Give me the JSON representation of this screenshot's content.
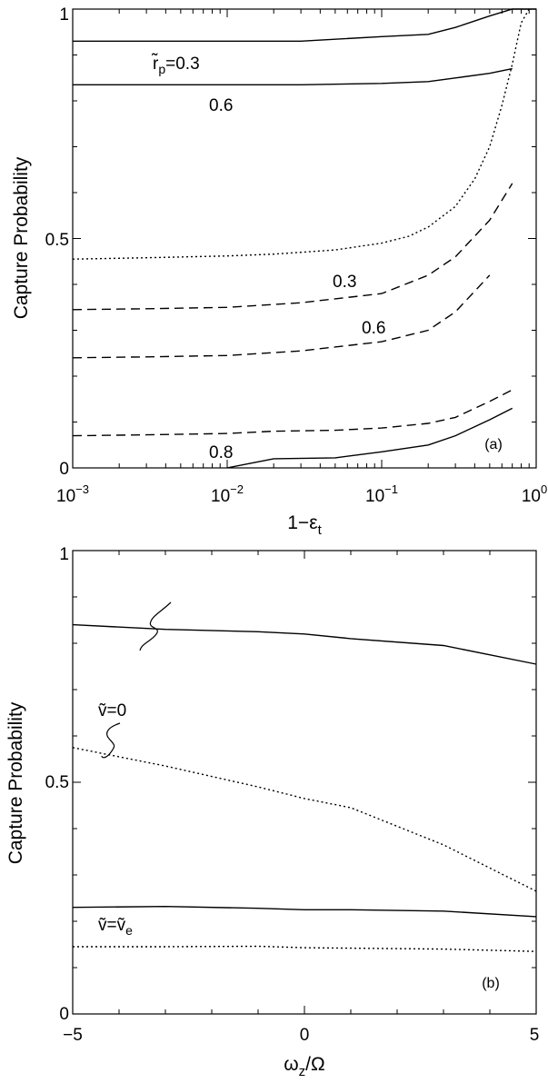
{
  "chart_data": [
    {
      "panel": "a",
      "type": "line",
      "panel_tag": "(a)",
      "xlabel": "1−ε",
      "xlabel_sub": "t",
      "ylabel": "Capture Probability",
      "xscale": "log",
      "xlim": [
        0.001,
        1
      ],
      "ylim": [
        0,
        1
      ],
      "x_tick_labels": [
        {
          "x": 0.001,
          "base": "10",
          "exp": "−3"
        },
        {
          "x": 0.01,
          "base": "10",
          "exp": "−2"
        },
        {
          "x": 0.1,
          "base": "10",
          "exp": "−1"
        },
        {
          "x": 1,
          "base": "10",
          "exp": "0"
        }
      ],
      "y_ticks": [
        0,
        0.5,
        1
      ],
      "y_tick_labels": [
        "0",
        "0.5",
        "1"
      ],
      "series": [
        {
          "name": "solid r=0.3",
          "style": "solid",
          "x": [
            0.001,
            0.003,
            0.01,
            0.03,
            0.1,
            0.2,
            0.3,
            0.5,
            0.7,
            0.9,
            1.0
          ],
          "y": [
            0.93,
            0.93,
            0.93,
            0.93,
            0.94,
            0.945,
            0.96,
            0.985,
            1.0,
            1.0,
            1.0
          ]
        },
        {
          "name": "solid r=0.6",
          "style": "solid",
          "x": [
            0.001,
            0.01,
            0.03,
            0.1,
            0.2,
            0.3,
            0.5,
            0.7
          ],
          "y": [
            0.835,
            0.835,
            0.835,
            0.838,
            0.842,
            0.85,
            0.86,
            0.87
          ]
        },
        {
          "name": "dotted",
          "style": "dotted",
          "x": [
            0.001,
            0.003,
            0.01,
            0.02,
            0.05,
            0.1,
            0.15,
            0.2,
            0.3,
            0.4,
            0.5,
            0.6,
            0.7,
            0.8,
            0.9
          ],
          "y": [
            0.455,
            0.458,
            0.462,
            0.466,
            0.475,
            0.49,
            0.505,
            0.525,
            0.57,
            0.63,
            0.7,
            0.79,
            0.88,
            0.97,
            1.0
          ]
        },
        {
          "name": "dashed 0.3",
          "style": "dashed",
          "x": [
            0.001,
            0.003,
            0.01,
            0.03,
            0.1,
            0.2,
            0.3,
            0.5,
            0.7
          ],
          "y": [
            0.345,
            0.347,
            0.35,
            0.36,
            0.38,
            0.42,
            0.46,
            0.54,
            0.62
          ]
        },
        {
          "name": "dashed 0.6",
          "style": "dashed",
          "x": [
            0.001,
            0.003,
            0.01,
            0.03,
            0.1,
            0.2,
            0.3,
            0.5
          ],
          "y": [
            0.24,
            0.242,
            0.245,
            0.255,
            0.275,
            0.3,
            0.34,
            0.42
          ]
        },
        {
          "name": "dashed 0.8",
          "style": "dashed",
          "x": [
            0.001,
            0.003,
            0.01,
            0.02,
            0.05,
            0.1,
            0.2,
            0.3,
            0.5,
            0.7
          ],
          "y": [
            0.07,
            0.072,
            0.075,
            0.08,
            0.082,
            0.087,
            0.097,
            0.11,
            0.145,
            0.17
          ]
        },
        {
          "name": "solid 0.8",
          "style": "solid",
          "x": [
            0.01,
            0.02,
            0.05,
            0.1,
            0.2,
            0.3,
            0.5,
            0.7
          ],
          "y": [
            0.0,
            0.02,
            0.022,
            0.035,
            0.05,
            0.07,
            0.105,
            0.13
          ]
        }
      ],
      "annotations": [
        {
          "id": "rp",
          "text_main": "r̃",
          "text_sub": "p",
          "text_tail": "=0.3",
          "x": 0.0013,
          "y": 0.89
        },
        {
          "id": "a1",
          "text": "0.6",
          "x": 0.0045,
          "y": 0.78
        },
        {
          "id": "a2",
          "text": "0.3",
          "x": 0.048,
          "y": 0.39
        },
        {
          "id": "a3",
          "text": "0.6",
          "x": 0.078,
          "y": 0.29
        },
        {
          "id": "a4",
          "text": "0.8",
          "x": 0.0095,
          "y": 0.025
        }
      ]
    },
    {
      "panel": "b",
      "type": "line",
      "panel_tag": "(b)",
      "xlabel": "ω",
      "xlabel_sub": "z",
      "xlabel_tail": "/Ω",
      "ylabel": "Capture Probability",
      "xlim": [
        -5,
        5
      ],
      "ylim": [
        0,
        1
      ],
      "x_ticks": [
        -5,
        0,
        5
      ],
      "x_tick_labels": [
        "−5",
        "0",
        "5"
      ],
      "y_ticks": [
        0,
        0.5,
        1
      ],
      "y_tick_labels": [
        "0",
        "0.5",
        "1"
      ],
      "series": [
        {
          "name": "solid upper",
          "style": "solid",
          "x": [
            -5,
            -3,
            -1,
            0,
            1,
            3,
            5
          ],
          "y": [
            0.84,
            0.83,
            0.825,
            0.82,
            0.81,
            0.795,
            0.755
          ]
        },
        {
          "name": "dotted upper",
          "style": "dotted",
          "x": [
            -5,
            -3,
            -1,
            0,
            1,
            3,
            5
          ],
          "y": [
            0.575,
            0.535,
            0.49,
            0.465,
            0.445,
            0.365,
            0.265
          ]
        },
        {
          "name": "solid lower",
          "style": "solid",
          "x": [
            -5,
            -3,
            -1,
            0,
            1,
            3,
            5
          ],
          "y": [
            0.23,
            0.232,
            0.228,
            0.225,
            0.225,
            0.222,
            0.21
          ]
        },
        {
          "name": "dotted lower",
          "style": "dotted",
          "x": [
            -5,
            -3,
            -1,
            0,
            1,
            3,
            5
          ],
          "y": [
            0.145,
            0.145,
            0.146,
            0.143,
            0.142,
            0.14,
            0.135
          ]
        }
      ],
      "annotations": [
        {
          "id": "v0",
          "text": "ṽ=0",
          "x": -4.6,
          "y": 0.68
        },
        {
          "id": "ve_main",
          "text_main": "ṽ=ṽ",
          "text_sub": "e",
          "x": -4.6,
          "y": 0.175
        }
      ]
    }
  ]
}
